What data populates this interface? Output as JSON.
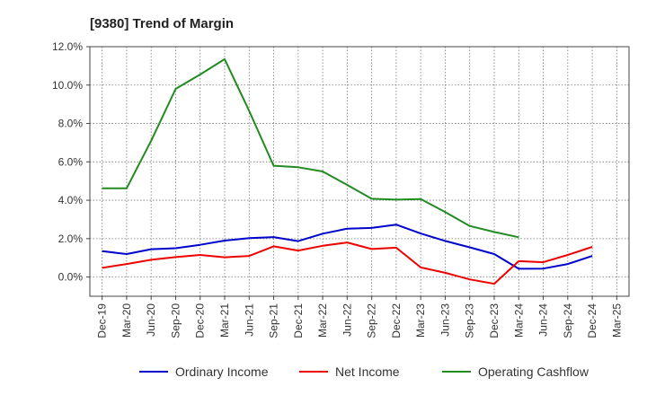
{
  "chart_data": {
    "type": "line",
    "title": "[9380]  Trend of Margin",
    "xlabel": "",
    "ylabel": "",
    "categories": [
      "Dec-19",
      "Mar-20",
      "Jun-20",
      "Sep-20",
      "Dec-20",
      "Mar-21",
      "Jun-21",
      "Sep-21",
      "Dec-21",
      "Mar-22",
      "Jun-22",
      "Sep-22",
      "Dec-22",
      "Mar-23",
      "Jun-23",
      "Sep-23",
      "Dec-23",
      "Mar-24",
      "Jun-24",
      "Sep-24",
      "Dec-24",
      "Mar-25"
    ],
    "ylim": [
      -1.0,
      12.0
    ],
    "yticks": [
      0.0,
      2.0,
      4.0,
      6.0,
      8.0,
      10.0,
      12.0
    ],
    "ytick_labels": [
      "0.0%",
      "2.0%",
      "4.0%",
      "6.0%",
      "8.0%",
      "10.0%",
      "12.0%"
    ],
    "grid": true,
    "legend_position": "bottom",
    "series": [
      {
        "name": "Ordinary Income",
        "color": "#0000cc",
        "values": [
          1.35,
          1.2,
          1.45,
          1.5,
          1.68,
          1.9,
          2.03,
          2.08,
          1.87,
          2.26,
          2.52,
          2.56,
          2.73,
          2.27,
          1.88,
          1.55,
          1.2,
          0.43,
          0.44,
          0.68,
          1.1,
          null
        ]
      },
      {
        "name": "Net Income",
        "color": "#ee0000",
        "values": [
          0.48,
          0.68,
          0.9,
          1.04,
          1.15,
          1.03,
          1.1,
          1.6,
          1.38,
          1.63,
          1.8,
          1.46,
          1.53,
          0.5,
          0.22,
          -0.12,
          -0.35,
          0.83,
          0.77,
          1.15,
          1.57,
          null
        ]
      },
      {
        "name": "Operating Cashflow",
        "color": "#228b22",
        "values": [
          4.62,
          4.62,
          7.1,
          9.8,
          10.55,
          11.35,
          8.65,
          5.8,
          5.72,
          5.5,
          4.8,
          4.08,
          4.03,
          4.06,
          3.38,
          2.66,
          2.35,
          2.07,
          null,
          null,
          null,
          null
        ]
      }
    ]
  }
}
